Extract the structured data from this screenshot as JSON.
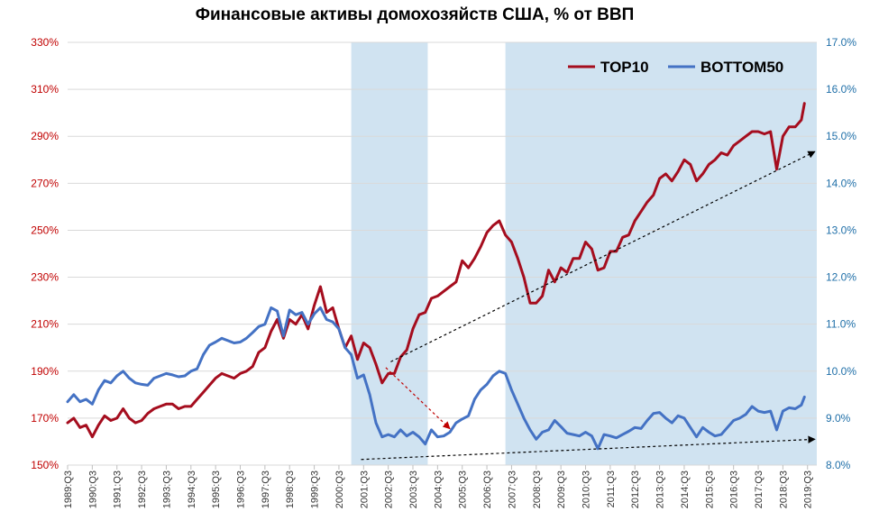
{
  "chart_data": {
    "type": "line",
    "title": "Финансовые активы домохозяйств США, % от ВВП",
    "colors": {
      "top10": "#a50d1e",
      "bottom50": "#4472c4",
      "shade": "#d0e3f1",
      "left_axis": "#c00000",
      "right_axis": "#1f6fa8",
      "arrow_top": "#c00000",
      "arrow_black": "#000000"
    },
    "x_range": [
      1989.5,
      2019.875
    ],
    "x_ticks": [
      "1989:Q3",
      "1990:Q3",
      "1991:Q3",
      "1992:Q3",
      "1993:Q3",
      "1994:Q3",
      "1995:Q3",
      "1996:Q3",
      "1997:Q3",
      "1998:Q3",
      "1999:Q3",
      "2000:Q3",
      "2001:Q3",
      "2002:Q3",
      "2003:Q3",
      "2004:Q3",
      "2005:Q3",
      "2006:Q3",
      "2007:Q3",
      "2008:Q3",
      "2009:Q3",
      "2010:Q3",
      "2011:Q3",
      "2012:Q3",
      "2013:Q3",
      "2014:Q3",
      "2015:Q3",
      "2016:Q3",
      "2017:Q3",
      "2018:Q3",
      "2019:Q3"
    ],
    "y_left": {
      "ylim": [
        150,
        330
      ],
      "ticks": [
        "150%",
        "170%",
        "190%",
        "210%",
        "230%",
        "250%",
        "270%",
        "290%",
        "310%",
        "330%"
      ]
    },
    "y_right": {
      "ylim": [
        8.0,
        17.0
      ],
      "ticks": [
        "8.0%",
        "9.0%",
        "10.0%",
        "11.0%",
        "12.0%",
        "13.0%",
        "14.0%",
        "15.0%",
        "16.0%",
        "17.0%"
      ]
    },
    "grid": "horizontal",
    "legend_position": "top-right",
    "shaded_periods": [
      [
        2001.0,
        2004.1
      ],
      [
        2007.25,
        2019.875
      ]
    ],
    "series": [
      {
        "name": "TOP10",
        "axis": "left",
        "points": [
          [
            1989.5,
            168
          ],
          [
            1989.75,
            170
          ],
          [
            1990.0,
            166
          ],
          [
            1990.25,
            167
          ],
          [
            1990.5,
            162
          ],
          [
            1990.75,
            167
          ],
          [
            1991.0,
            171
          ],
          [
            1991.25,
            169
          ],
          [
            1991.5,
            170
          ],
          [
            1991.75,
            174
          ],
          [
            1992.0,
            170
          ],
          [
            1992.25,
            168
          ],
          [
            1992.5,
            169
          ],
          [
            1992.75,
            172
          ],
          [
            1993.0,
            174
          ],
          [
            1993.25,
            175
          ],
          [
            1993.5,
            176
          ],
          [
            1993.75,
            176
          ],
          [
            1994.0,
            174
          ],
          [
            1994.25,
            175
          ],
          [
            1994.5,
            175
          ],
          [
            1994.75,
            178
          ],
          [
            1995.0,
            181
          ],
          [
            1995.25,
            184
          ],
          [
            1995.5,
            187
          ],
          [
            1995.75,
            189
          ],
          [
            1996.0,
            188
          ],
          [
            1996.25,
            187
          ],
          [
            1996.5,
            189
          ],
          [
            1996.75,
            190
          ],
          [
            1997.0,
            192
          ],
          [
            1997.25,
            198
          ],
          [
            1997.5,
            200
          ],
          [
            1997.75,
            207
          ],
          [
            1998.0,
            212
          ],
          [
            1998.25,
            204
          ],
          [
            1998.5,
            212
          ],
          [
            1998.75,
            210
          ],
          [
            1999.0,
            214
          ],
          [
            1999.25,
            208
          ],
          [
            1999.5,
            218
          ],
          [
            1999.75,
            226
          ],
          [
            2000.0,
            215
          ],
          [
            2000.25,
            217
          ],
          [
            2000.5,
            208
          ],
          [
            2000.75,
            200
          ],
          [
            2001.0,
            205
          ],
          [
            2001.25,
            195
          ],
          [
            2001.5,
            202
          ],
          [
            2001.75,
            200
          ],
          [
            2002.0,
            193
          ],
          [
            2002.25,
            185
          ],
          [
            2002.5,
            189
          ],
          [
            2002.75,
            189
          ],
          [
            2003.0,
            196
          ],
          [
            2003.25,
            199
          ],
          [
            2003.5,
            208
          ],
          [
            2003.75,
            214
          ],
          [
            2004.0,
            215
          ],
          [
            2004.25,
            221
          ],
          [
            2004.5,
            222
          ],
          [
            2004.75,
            224
          ],
          [
            2005.0,
            226
          ],
          [
            2005.25,
            228
          ],
          [
            2005.5,
            237
          ],
          [
            2005.75,
            234
          ],
          [
            2006.0,
            238
          ],
          [
            2006.25,
            243
          ],
          [
            2006.5,
            249
          ],
          [
            2006.75,
            252
          ],
          [
            2007.0,
            254
          ],
          [
            2007.25,
            248
          ],
          [
            2007.5,
            245
          ],
          [
            2007.75,
            238
          ],
          [
            2008.0,
            230
          ],
          [
            2008.25,
            219
          ],
          [
            2008.5,
            219
          ],
          [
            2008.75,
            222
          ],
          [
            2009.0,
            233
          ],
          [
            2009.25,
            228
          ],
          [
            2009.5,
            234
          ],
          [
            2009.75,
            232
          ],
          [
            2010.0,
            238
          ],
          [
            2010.25,
            238
          ],
          [
            2010.5,
            245
          ],
          [
            2010.75,
            242
          ],
          [
            2011.0,
            233
          ],
          [
            2011.25,
            234
          ],
          [
            2011.5,
            241
          ],
          [
            2011.75,
            241
          ],
          [
            2012.0,
            247
          ],
          [
            2012.25,
            248
          ],
          [
            2012.5,
            254
          ],
          [
            2012.75,
            258
          ],
          [
            2013.0,
            262
          ],
          [
            2013.25,
            265
          ],
          [
            2013.5,
            272
          ],
          [
            2013.75,
            274
          ],
          [
            2014.0,
            271
          ],
          [
            2014.25,
            275
          ],
          [
            2014.5,
            280
          ],
          [
            2014.75,
            278
          ],
          [
            2015.0,
            271
          ],
          [
            2015.25,
            274
          ],
          [
            2015.5,
            278
          ],
          [
            2015.75,
            280
          ],
          [
            2016.0,
            283
          ],
          [
            2016.25,
            282
          ],
          [
            2016.5,
            286
          ],
          [
            2016.75,
            288
          ],
          [
            2017.0,
            290
          ],
          [
            2017.25,
            292
          ],
          [
            2017.5,
            292
          ],
          [
            2017.75,
            291
          ],
          [
            2018.0,
            292
          ],
          [
            2018.25,
            276
          ],
          [
            2018.5,
            290
          ],
          [
            2018.75,
            294
          ],
          [
            2019.0,
            294
          ],
          [
            2019.25,
            297
          ],
          [
            2019.375,
            304
          ]
        ]
      },
      {
        "name": "BOTTOM50",
        "axis": "right",
        "points": [
          [
            1989.5,
            9.35
          ],
          [
            1989.75,
            9.5
          ],
          [
            1990.0,
            9.35
          ],
          [
            1990.25,
            9.4
          ],
          [
            1990.5,
            9.3
          ],
          [
            1990.75,
            9.6
          ],
          [
            1991.0,
            9.8
          ],
          [
            1991.25,
            9.75
          ],
          [
            1991.5,
            9.9
          ],
          [
            1991.75,
            10.0
          ],
          [
            1992.0,
            9.85
          ],
          [
            1992.25,
            9.75
          ],
          [
            1992.5,
            9.72
          ],
          [
            1992.75,
            9.7
          ],
          [
            1993.0,
            9.85
          ],
          [
            1993.25,
            9.9
          ],
          [
            1993.5,
            9.95
          ],
          [
            1993.75,
            9.92
          ],
          [
            1994.0,
            9.88
          ],
          [
            1994.25,
            9.9
          ],
          [
            1994.5,
            10.0
          ],
          [
            1994.75,
            10.05
          ],
          [
            1995.0,
            10.35
          ],
          [
            1995.25,
            10.55
          ],
          [
            1995.5,
            10.62
          ],
          [
            1995.75,
            10.7
          ],
          [
            1996.0,
            10.65
          ],
          [
            1996.25,
            10.6
          ],
          [
            1996.5,
            10.62
          ],
          [
            1996.75,
            10.7
          ],
          [
            1997.0,
            10.82
          ],
          [
            1997.25,
            10.95
          ],
          [
            1997.5,
            11.0
          ],
          [
            1997.75,
            11.35
          ],
          [
            1998.0,
            11.28
          ],
          [
            1998.25,
            10.75
          ],
          [
            1998.5,
            11.3
          ],
          [
            1998.75,
            11.2
          ],
          [
            1999.0,
            11.25
          ],
          [
            1999.25,
            11.0
          ],
          [
            1999.5,
            11.22
          ],
          [
            1999.75,
            11.35
          ],
          [
            2000.0,
            11.1
          ],
          [
            2000.25,
            11.05
          ],
          [
            2000.5,
            10.9
          ],
          [
            2000.75,
            10.5
          ],
          [
            2001.0,
            10.35
          ],
          [
            2001.25,
            9.85
          ],
          [
            2001.5,
            9.92
          ],
          [
            2001.75,
            9.5
          ],
          [
            2002.0,
            8.9
          ],
          [
            2002.25,
            8.6
          ],
          [
            2002.5,
            8.65
          ],
          [
            2002.75,
            8.6
          ],
          [
            2003.0,
            8.75
          ],
          [
            2003.25,
            8.62
          ],
          [
            2003.5,
            8.7
          ],
          [
            2003.75,
            8.6
          ],
          [
            2004.0,
            8.45
          ],
          [
            2004.25,
            8.75
          ],
          [
            2004.5,
            8.6
          ],
          [
            2004.75,
            8.62
          ],
          [
            2005.0,
            8.7
          ],
          [
            2005.25,
            8.9
          ],
          [
            2005.5,
            8.98
          ],
          [
            2005.75,
            9.05
          ],
          [
            2006.0,
            9.4
          ],
          [
            2006.25,
            9.6
          ],
          [
            2006.5,
            9.72
          ],
          [
            2006.75,
            9.9
          ],
          [
            2007.0,
            10.0
          ],
          [
            2007.25,
            9.95
          ],
          [
            2007.5,
            9.6
          ],
          [
            2007.75,
            9.3
          ],
          [
            2008.0,
            9.0
          ],
          [
            2008.25,
            8.75
          ],
          [
            2008.5,
            8.55
          ],
          [
            2008.75,
            8.7
          ],
          [
            2009.0,
            8.75
          ],
          [
            2009.25,
            8.95
          ],
          [
            2009.5,
            8.82
          ],
          [
            2009.75,
            8.68
          ],
          [
            2010.0,
            8.65
          ],
          [
            2010.25,
            8.62
          ],
          [
            2010.5,
            8.7
          ],
          [
            2010.75,
            8.62
          ],
          [
            2011.0,
            8.35
          ],
          [
            2011.25,
            8.65
          ],
          [
            2011.5,
            8.62
          ],
          [
            2011.75,
            8.58
          ],
          [
            2012.0,
            8.65
          ],
          [
            2012.25,
            8.72
          ],
          [
            2012.5,
            8.8
          ],
          [
            2012.75,
            8.78
          ],
          [
            2013.0,
            8.95
          ],
          [
            2013.25,
            9.1
          ],
          [
            2013.5,
            9.12
          ],
          [
            2013.75,
            9.0
          ],
          [
            2014.0,
            8.9
          ],
          [
            2014.25,
            9.05
          ],
          [
            2014.5,
            9.0
          ],
          [
            2014.75,
            8.8
          ],
          [
            2015.0,
            8.6
          ],
          [
            2015.25,
            8.8
          ],
          [
            2015.5,
            8.7
          ],
          [
            2015.75,
            8.62
          ],
          [
            2016.0,
            8.65
          ],
          [
            2016.25,
            8.8
          ],
          [
            2016.5,
            8.95
          ],
          [
            2016.75,
            9.0
          ],
          [
            2017.0,
            9.08
          ],
          [
            2017.25,
            9.25
          ],
          [
            2017.5,
            9.15
          ],
          [
            2017.75,
            9.12
          ],
          [
            2018.0,
            9.15
          ],
          [
            2018.25,
            8.75
          ],
          [
            2018.5,
            9.15
          ],
          [
            2018.75,
            9.22
          ],
          [
            2019.0,
            9.2
          ],
          [
            2019.25,
            9.28
          ],
          [
            2019.375,
            9.45
          ]
        ]
      }
    ],
    "annotations": [
      {
        "type": "arrow",
        "style": "dashed",
        "color": "arrow_top",
        "from": [
          2002.4,
          191.5
        ],
        "to": [
          2005.0,
          165.5
        ],
        "axis": "left"
      },
      {
        "type": "arrow",
        "style": "dashed",
        "color": "arrow_black",
        "from": [
          2002.6,
          194
        ],
        "to": [
          2019.8,
          283.5
        ],
        "axis": "left"
      },
      {
        "type": "arrow",
        "style": "dashed",
        "color": "arrow_black",
        "from": [
          2001.4,
          152.4
        ],
        "to": [
          2019.8,
          161
        ],
        "axis": "left"
      }
    ]
  }
}
